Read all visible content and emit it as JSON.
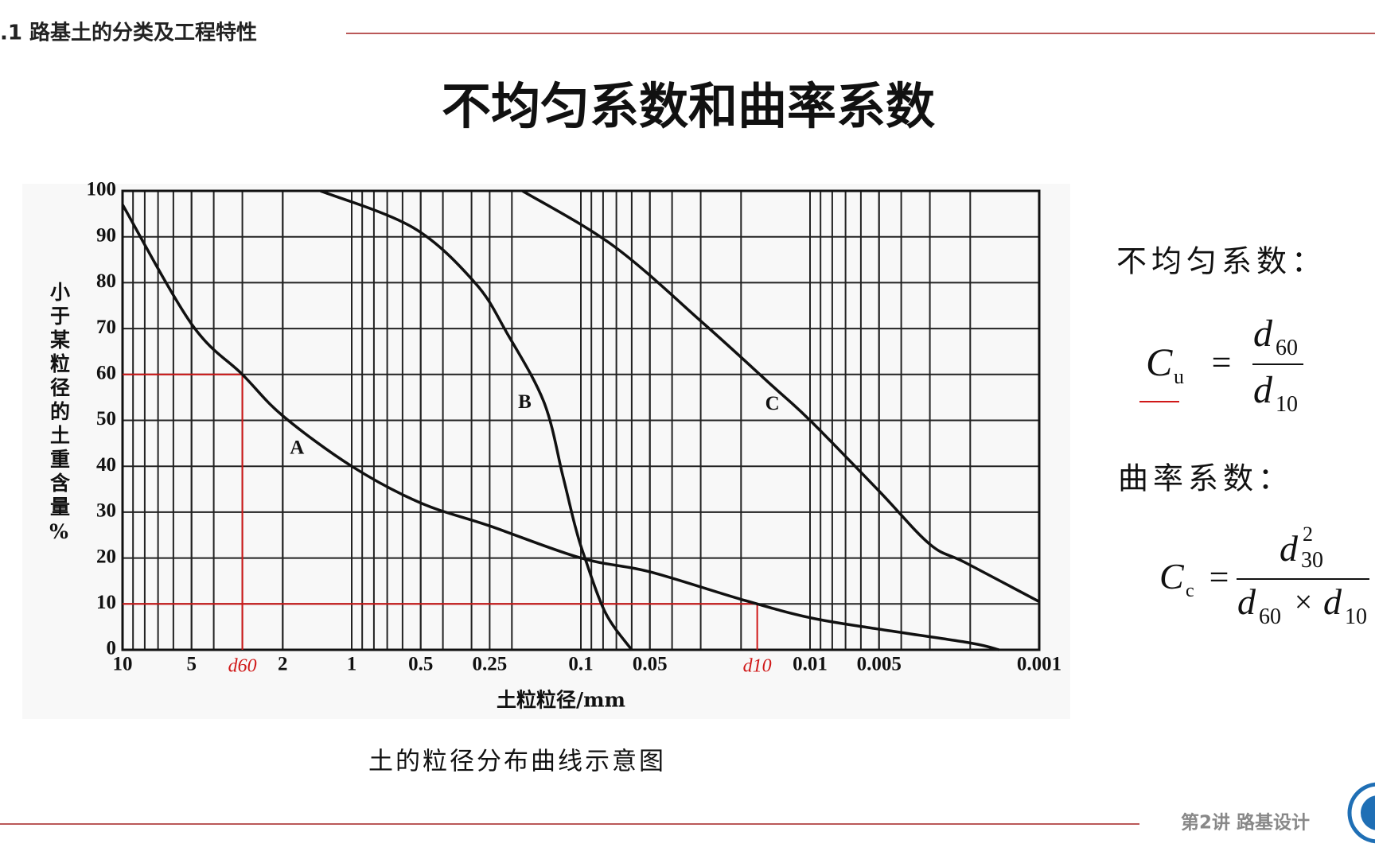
{
  "header": {
    "section": ".1 路基土的分类及工程特性"
  },
  "title": "不均匀系数和曲率系数",
  "chart_data": {
    "type": "line",
    "x_label": "土粒粒径/mm",
    "y_label": "小于某粒径的土重含量%",
    "caption": "土的粒径分布曲线示意图",
    "x_log": true,
    "grid": true,
    "xlim": [
      10,
      0.001
    ],
    "ylim": [
      0,
      100
    ],
    "xticks": [
      10,
      5,
      2,
      1,
      0.5,
      0.25,
      0.1,
      0.05,
      0.01,
      0.005,
      0.001
    ],
    "yticks": [
      0,
      10,
      20,
      30,
      40,
      50,
      60,
      70,
      80,
      90,
      100
    ],
    "series": [
      {
        "name": "A",
        "color": "#111111",
        "x": [
          10,
          5,
          3,
          2,
          1,
          0.5,
          0.25,
          0.1,
          0.05,
          0.02,
          0.01,
          0.005,
          0.002,
          0.0015
        ],
        "values": [
          97,
          71,
          60,
          51,
          40,
          32,
          27,
          20,
          17,
          11,
          7,
          4.5,
          1.5,
          0
        ]
      },
      {
        "name": "B",
        "color": "#111111",
        "x": [
          1.37,
          0.54,
          0.29,
          0.21,
          0.145,
          0.12,
          0.106,
          0.096,
          0.078,
          0.06
        ],
        "values": [
          100,
          92,
          80,
          69,
          54,
          38,
          27,
          20,
          8,
          0
        ]
      },
      {
        "name": "C",
        "color": "#111111",
        "x": [
          0.18,
          0.072,
          0.029,
          0.0146,
          0.01,
          0.005,
          0.003,
          0.0021,
          0.001
        ],
        "values": [
          100,
          88,
          71,
          57.5,
          50,
          34.6,
          23,
          19,
          10.5
        ]
      }
    ],
    "annotations": [
      {
        "text": "d60",
        "x": 3,
        "y": 60,
        "color": "#d01818"
      },
      {
        "text": "d10",
        "x": 0.017,
        "y": 10,
        "color": "#d01818"
      }
    ]
  },
  "formulas": {
    "cu": {
      "heading": "不均匀系数：",
      "symbol": "C",
      "sub": "u",
      "eq": "=",
      "num": {
        "symbol": "d",
        "sub": "60"
      },
      "den": {
        "symbol": "d",
        "sub": "10"
      }
    },
    "cc": {
      "heading": "曲率系数：",
      "symbol": "C",
      "sub": "c",
      "eq": "=",
      "num": {
        "symbol": "d",
        "sub": "30",
        "sup": "2"
      },
      "den": {
        "a": {
          "symbol": "d",
          "sub": "60"
        },
        "op": "×",
        "b": {
          "symbol": "d",
          "sub": "10"
        }
      }
    }
  },
  "footer": {
    "text": "第2讲 路基设计"
  }
}
